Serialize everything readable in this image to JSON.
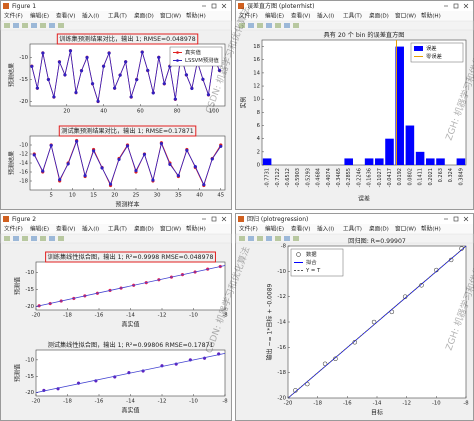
{
  "windows": [
    {
      "title": "Figure 1",
      "menu": [
        "文件(F)",
        "编辑(E)",
        "查看(V)",
        "插入(I)",
        "工具(T)",
        "桌面(D)",
        "窗口(W)",
        "帮助(H)"
      ],
      "chart_data": [
        {
          "type": "line",
          "title": "训练集预测结果对比，输出 1; RMSE=0.048978",
          "highlight": true,
          "ylabel": "预测结果",
          "legend": "upper right",
          "x": [
            1,
            4,
            7,
            10,
            13,
            16,
            19,
            22,
            25,
            28,
            31,
            34,
            37,
            40,
            43,
            46,
            49,
            52,
            55,
            58,
            61,
            64,
            67,
            70,
            73,
            76,
            79,
            82,
            85,
            88,
            91,
            94,
            97,
            100,
            103
          ],
          "series": [
            {
              "name": "真实值",
              "color": "#e02020",
              "mode": "lines+markers",
              "marker": "circle",
              "values": [
                -12,
                -17,
                -9,
                -15,
                -19,
                -11,
                -14,
                -8.5,
                -18,
                -13,
                -10,
                -16,
                -20,
                -12,
                -9,
                -17,
                -14,
                -11,
                -19,
                -15,
                -8.8,
                -13,
                -18,
                -10,
                -16,
                -12,
                -19.5,
                -9.5,
                -14,
                -17,
                -11,
                -15,
                -18.5,
                -10,
                -13
              ]
            },
            {
              "name": "LSSVM预测值",
              "color": "#3020c0",
              "mode": "lines+markers",
              "marker": "circle",
              "values": [
                -12.05,
                -16.96,
                -9.04,
                -15.03,
                -18.95,
                -11.06,
                -13.97,
                -8.55,
                -17.96,
                -13.04,
                -10.05,
                -15.96,
                -19.94,
                -12.03,
                -9.06,
                -16.97,
                -14.04,
                -11.02,
                -18.95,
                -15.05,
                -8.84,
                -12.96,
                -18.05,
                -10.03,
                -15.95,
                -12.06,
                -19.44,
                -9.55,
                -13.96,
                -17.04,
                -11.05,
                -14.97,
                -18.45,
                -10.04,
                -12.95
              ]
            }
          ],
          "xlim": [
            0,
            106
          ],
          "xticks": [
            20,
            40,
            60,
            80,
            100
          ],
          "ylim": [
            -21,
            -7
          ],
          "yticks": [
            -20,
            -15,
            -10
          ]
        },
        {
          "type": "line",
          "title": "测试集预测结果对比，输出 1; RMSE=0.17871",
          "highlight": true,
          "xlabel": "预测样本",
          "ylabel": "预测结果",
          "x": [
            1,
            3,
            5,
            7,
            9,
            11,
            13,
            15,
            17,
            19,
            21,
            23,
            25,
            27,
            29,
            31,
            33,
            35,
            37,
            39,
            41,
            43,
            45
          ],
          "series": [
            {
              "name": "真实值",
              "color": "#e02020",
              "mode": "lines+markers",
              "marker": "circle",
              "values": [
                -12,
                -16,
                -10,
                -18,
                -14,
                -9,
                -17,
                -11,
                -15,
                -19,
                -13,
                -10,
                -16,
                -12,
                -18,
                -9.5,
                -14,
                -17,
                -11,
                -15,
                -19,
                -13,
                -10
              ]
            },
            {
              "name": "LSSVM预测值",
              "color": "#3020c0",
              "mode": "lines+markers",
              "marker": "circle",
              "values": [
                -12.2,
                -15.8,
                -10.1,
                -17.7,
                -14.2,
                -9.2,
                -16.8,
                -11.3,
                -15.1,
                -18.7,
                -13.2,
                -10.2,
                -15.7,
                -12.1,
                -17.8,
                -9.7,
                -14.3,
                -16.8,
                -11.2,
                -14.8,
                -18.8,
                -13.1,
                -10.3
              ]
            }
          ],
          "xlim": [
            0,
            46
          ],
          "xticks": [
            5,
            10,
            15,
            20,
            25,
            30,
            35,
            40,
            45
          ],
          "ylim": [
            -20,
            -8
          ],
          "yticks": [
            -18,
            -16,
            -14,
            -12,
            -10
          ]
        }
      ]
    },
    {
      "title": "误差直方图 (ploterrhist)",
      "menu": [
        "文件(F)",
        "编辑(E)",
        "查看(V)",
        "插入(I)",
        "工具(T)",
        "桌面(D)",
        "窗口(W)",
        "帮助(H)"
      ],
      "chart_data": [
        {
          "type": "histogram",
          "title": "具有 20 个 bin 的误差直方图",
          "xlabel": "误差",
          "ylabel": "实例",
          "legend": "upper right",
          "x": [
            -0.7731,
            -0.7122,
            -0.6512,
            -0.5903,
            -0.5293,
            -0.4684,
            -0.4074,
            -0.3465,
            -0.2855,
            -0.2246,
            -0.1636,
            -0.1027,
            -0.0417,
            0.0192,
            0.0802,
            0.1411,
            0.2021,
            0.263,
            0.324,
            0.3849
          ],
          "series": [
            {
              "name": "误差",
              "color": "#0000ff",
              "values": [
                1,
                0,
                0,
                0,
                0,
                0,
                0,
                0,
                1,
                0,
                1,
                1,
                4,
                18,
                6,
                2,
                1,
                1,
                0,
                1
              ]
            }
          ],
          "zero_line": {
            "name": "零误差",
            "color": "#e8a000",
            "x": 0
          },
          "xlim": [
            -0.8036,
            0.4154
          ],
          "ylim": [
            0,
            19
          ],
          "yticks": [
            0,
            2,
            4,
            6,
            8,
            10,
            12,
            14,
            16,
            18
          ]
        }
      ]
    },
    {
      "title": "Figure 2",
      "menu": [
        "文件(F)",
        "编辑(E)",
        "查看(V)",
        "插入(I)",
        "工具(T)",
        "桌面(D)",
        "窗口(W)",
        "帮助(H)"
      ],
      "chart_data": [
        {
          "type": "scatter",
          "title": "训练集线性拟合图，输出 1; R²=0.9998  RMSE=0.048978",
          "highlight": true,
          "xlabel": "真实值",
          "ylabel": "预测值",
          "series": [
            {
              "color": "#e0205a",
              "mode": "markers",
              "marker": "circle",
              "x": [
                -19.8,
                -19.1,
                -18.4,
                -17.6,
                -16.9,
                -16.1,
                -15.3,
                -14.6,
                -13.8,
                -13,
                -12.2,
                -11.4,
                -10.7,
                -9.9,
                -9.1,
                -8.3
              ],
              "values": [
                -19.77,
                -19.13,
                -18.38,
                -17.63,
                -16.88,
                -16.12,
                -15.28,
                -14.62,
                -13.79,
                -13.03,
                -12.18,
                -11.42,
                -10.69,
                -9.92,
                -9.08,
                -8.32
              ]
            },
            {
              "color": "#4040d0",
              "mode": "lines",
              "x": [
                -20,
                -8
              ],
              "values": [
                -19.99,
                -8.01
              ]
            }
          ],
          "xlim": [
            -20,
            -8
          ],
          "xticks": [
            -20,
            -18,
            -16,
            -14,
            -12,
            -10,
            -8
          ],
          "ylim": [
            -21,
            -7
          ],
          "yticks": [
            -20,
            -15,
            -10
          ]
        },
        {
          "type": "scatter",
          "title": "测试集线性拟合图，输出 1; R²=0.99806  RMSE=0.17871",
          "xlabel": "真实值",
          "ylabel": "预测值",
          "series": [
            {
              "color": "#6020c0",
              "mode": "markers",
              "marker": "circle",
              "x": [
                -19.5,
                -18.6,
                -17.3,
                -16.2,
                -15,
                -14.1,
                -13.2,
                -12,
                -11.1,
                -10.2,
                -9.3,
                -8.4
              ],
              "values": [
                -19.3,
                -18.8,
                -17.1,
                -16.4,
                -15.2,
                -13.9,
                -13.4,
                -11.8,
                -11.3,
                -10,
                -9.5,
                -8.2
              ]
            },
            {
              "color": "#4040d0",
              "mode": "lines",
              "x": [
                -20,
                -8
              ],
              "values": [
                -19.97,
                -8.03
              ]
            }
          ],
          "xlim": [
            -20,
            -8
          ],
          "xticks": [
            -20,
            -18,
            -16,
            -14,
            -12,
            -10,
            -8
          ],
          "ylim": [
            -21,
            -7
          ],
          "yticks": [
            -20,
            -15,
            -10
          ]
        }
      ]
    },
    {
      "title": "回归 (plotregression)",
      "menu": [
        "文件(F)",
        "编辑(E)",
        "查看(V)",
        "插入(I)",
        "工具(T)",
        "桌面(D)",
        "窗口(W)",
        "帮助(H)"
      ],
      "chart_data": [
        {
          "type": "scatter",
          "title": "回归图: R=0.99907",
          "xlabel": "目标",
          "ylabel": "输出 ~= 1*目标 + -0.0089",
          "legend": "upper left",
          "series": [
            {
              "name": "数据",
              "color": "#222222",
              "mode": "markers",
              "marker": "open-circle",
              "x": [
                -19.5,
                -18.7,
                -17.5,
                -16.8,
                -15.5,
                -14.2,
                -13,
                -12.1,
                -11,
                -10,
                -9,
                -8.3
              ],
              "values": [
                -19.4,
                -18.9,
                -17.3,
                -16.9,
                -15.6,
                -14,
                -13.2,
                -12,
                -11.1,
                -9.9,
                -9.1,
                -8.2
              ]
            },
            {
              "name": "拟合",
              "color": "#0000ff",
              "mode": "lines",
              "x": [
                -20,
                -8
              ],
              "values": [
                -20.01,
                -8.01
              ]
            },
            {
              "name": "Y = T",
              "color": "#555555",
              "mode": "lines",
              "dash": true,
              "x": [
                -20,
                -8
              ],
              "values": [
                -20,
                -8
              ]
            }
          ],
          "xlim": [
            -20,
            -8
          ],
          "xticks": [
            -20,
            -18,
            -16,
            -14,
            -12,
            -10,
            -8
          ],
          "ylim": [
            -20,
            -8
          ],
          "yticks": [
            -20,
            -18,
            -16,
            -14,
            -12,
            -10,
            -8
          ]
        }
      ]
    }
  ],
  "watermarks": [
    "CSDN: 机器学习和优化算法",
    "ZGH: 机器学习和优化算法",
    "CSDN: 机器学习和优化算法",
    "ZGH: 机器学习和优化算法"
  ]
}
